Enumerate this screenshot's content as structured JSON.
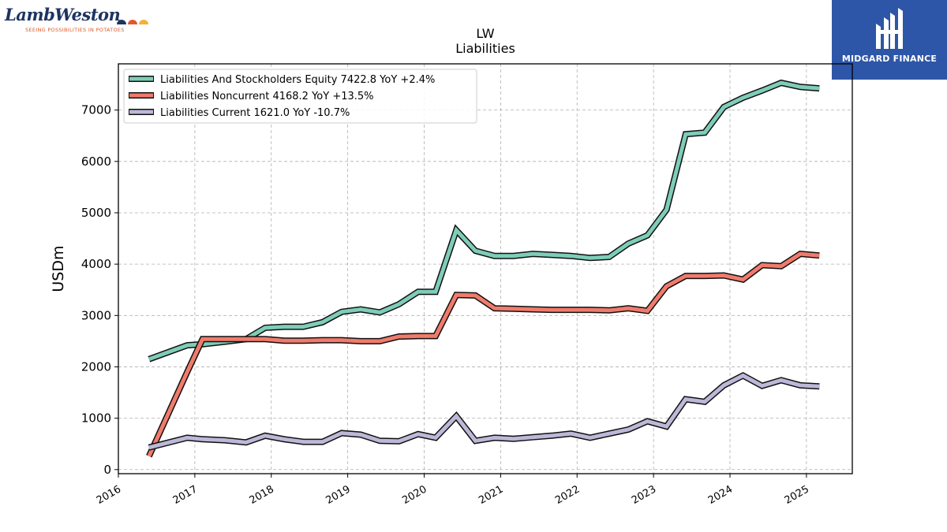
{
  "branding": {
    "company_name": "LambWeston",
    "tagline": "SEEING POSSIBILITIES IN POTATOES",
    "company_logo_icon": "lambweston-logo-icon",
    "partner_name": "MIDGARD FINANCE",
    "partner_logo_icon": "midgard-finance-logo-icon",
    "brand_color": "#1d3461",
    "partner_color": "#2d56a8"
  },
  "chart_data": {
    "type": "line",
    "title": "LW",
    "subtitle": "Liabilities",
    "xlabel": "",
    "ylabel": "USDm",
    "x_ticks": [
      "2016",
      "2017",
      "2018",
      "2019",
      "2020",
      "2021",
      "2022",
      "2023",
      "2024",
      "2025"
    ],
    "y_ticks": [
      0,
      1000,
      2000,
      3000,
      4000,
      5000,
      6000,
      7000
    ],
    "xlim": [
      2016.0,
      2025.6
    ],
    "ylim": [
      -80,
      7900
    ],
    "grid": true,
    "legend_position": "top-left",
    "x": [
      2016.4,
      2016.9,
      2017.1,
      2017.4,
      2017.67,
      2017.92,
      2018.17,
      2018.42,
      2018.67,
      2018.92,
      2019.17,
      2019.42,
      2019.67,
      2019.92,
      2020.15,
      2020.42,
      2020.67,
      2020.92,
      2021.17,
      2021.42,
      2021.67,
      2021.92,
      2022.17,
      2022.42,
      2022.67,
      2022.92,
      2023.17,
      2023.42,
      2023.67,
      2023.92,
      2024.17,
      2024.42,
      2024.67,
      2024.92,
      2025.17
    ],
    "series": [
      {
        "name": "Liabilities And Stockholders Equity",
        "legend": "Liabilities And Stockholders Equity  7422.8 YoY +2.4%",
        "color": "#7ecdb8",
        "values": [
          2150,
          2420,
          2440,
          2490,
          2540,
          2760,
          2780,
          2780,
          2870,
          3070,
          3120,
          3060,
          3220,
          3460,
          3460,
          4660,
          4260,
          4160,
          4160,
          4200,
          4180,
          4160,
          4120,
          4140,
          4400,
          4560,
          5060,
          6530,
          6560,
          7060,
          7240,
          7380,
          7530,
          7450,
          7422.8
        ]
      },
      {
        "name": "Liabilities Noncurrent",
        "legend": "Liabilities Noncurrent  4168.2 YoY +13.5%",
        "color": "#f07b6c",
        "values": [
          260,
          1900,
          2540,
          2540,
          2540,
          2540,
          2510,
          2510,
          2520,
          2520,
          2500,
          2500,
          2590,
          2600,
          2600,
          3400,
          3390,
          3140,
          3130,
          3120,
          3110,
          3110,
          3110,
          3100,
          3140,
          3090,
          3570,
          3770,
          3770,
          3780,
          3700,
          3980,
          3960,
          4200,
          4168.2
        ]
      },
      {
        "name": "Liabilities Current",
        "legend": "Liabilities Current  1621.0 YoY -10.7%",
        "color": "#bcb8d8",
        "values": [
          430,
          620,
          590,
          570,
          530,
          660,
          590,
          540,
          540,
          710,
          680,
          560,
          550,
          690,
          620,
          1040,
          560,
          620,
          600,
          630,
          660,
          700,
          620,
          700,
          780,
          940,
          840,
          1370,
          1320,
          1640,
          1830,
          1630,
          1740,
          1640,
          1621.0
        ]
      }
    ]
  }
}
